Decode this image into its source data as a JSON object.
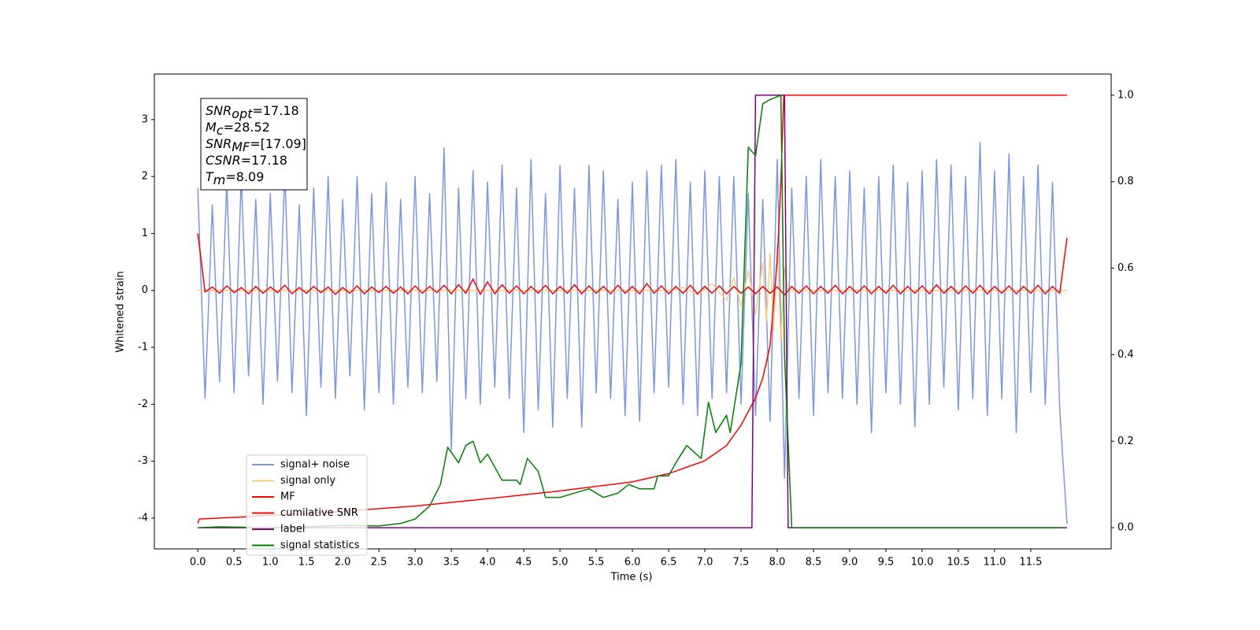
{
  "chart_data": {
    "type": "line",
    "xlabel": "Time (s)",
    "ylabel": "Whitened strain",
    "xlim": [
      -0.6,
      12.61
    ],
    "ylim": [
      -4.54,
      3.8
    ],
    "y2lim": [
      -0.049,
      1.049
    ],
    "xticks": [
      {
        "value": 0,
        "label": "0.0"
      },
      0.5,
      {
        "value": 1,
        "label": "1.0"
      },
      1.5,
      {
        "value": 2,
        "label": "2.0"
      },
      2.5,
      {
        "value": 3,
        "label": "3.0"
      },
      3.5,
      {
        "value": 4,
        "label": "4.0"
      },
      4.5,
      {
        "value": 5,
        "label": "5.0"
      },
      5.5,
      {
        "value": 6,
        "label": "6.0"
      },
      6.5,
      {
        "value": 7,
        "label": "7.0"
      },
      7.5,
      {
        "value": 8,
        "label": "8.0"
      },
      8.5,
      {
        "value": 9,
        "label": "9.0"
      },
      9.5,
      {
        "value": 10,
        "label": "10.0"
      },
      10.5,
      {
        "value": 11,
        "label": "11.0"
      },
      11.5
    ],
    "yticks": [
      -4,
      -3,
      -2,
      -1,
      0,
      1,
      2,
      3
    ],
    "y2ticks": [
      {
        "value": 0,
        "label": "0.0"
      },
      0.2,
      0.4,
      0.6,
      0.8,
      {
        "value": 1,
        "label": "1.0"
      }
    ],
    "legend": "lower left",
    "annotations": [
      {
        "main": "SNR",
        "sub": "opt",
        "text": "=17.18"
      },
      {
        "main": "M",
        "sub": "c",
        "text": "=28.52"
      },
      {
        "main": "SNR",
        "sub": "MF",
        "text": "=[17.09]"
      },
      {
        "main": "CSNR",
        "sub": "",
        "text": "=17.18"
      },
      {
        "main": "T",
        "sub": "m",
        "text": "=8.09"
      }
    ],
    "series": [
      {
        "name": "signal+ noise",
        "color": "#7b96e8",
        "x": [
          0,
          0.1,
          0.2,
          0.3,
          0.4,
          0.5,
          0.6,
          0.7,
          0.8,
          0.9,
          1,
          1.1,
          1.2,
          1.3,
          1.4,
          1.5,
          1.6,
          1.7,
          1.8,
          1.9,
          2,
          2.1,
          2.2,
          2.3,
          2.4,
          2.5,
          2.6,
          2.7,
          2.8,
          2.9,
          3,
          3.1,
          3.2,
          3.3,
          3.4,
          3.5,
          3.6,
          3.7,
          3.8,
          3.9,
          4,
          4.1,
          4.2,
          4.3,
          4.4,
          4.5,
          4.6,
          4.7,
          4.8,
          4.9,
          5,
          5.1,
          5.2,
          5.3,
          5.4,
          5.5,
          5.6,
          5.7,
          5.8,
          5.9,
          6,
          6.1,
          6.2,
          6.3,
          6.4,
          6.5,
          6.6,
          6.7,
          6.8,
          6.9,
          7,
          7.1,
          7.2,
          7.3,
          7.4,
          7.5,
          7.6,
          7.7,
          7.8,
          7.9,
          8,
          8.1,
          8.2,
          8.3,
          8.4,
          8.5,
          8.6,
          8.7,
          8.8,
          8.9,
          9,
          9.1,
          9.2,
          9.3,
          9.4,
          9.5,
          9.6,
          9.7,
          9.8,
          9.9,
          10,
          10.1,
          10.2,
          10.3,
          10.4,
          10.5,
          10.6,
          10.7,
          10.8,
          10.9,
          11,
          11.1,
          11.2,
          11.3,
          11.4,
          11.5,
          11.6,
          11.7,
          11.8,
          11.9,
          12
        ],
        "values": [
          1.8,
          -1.9,
          1.5,
          -1.6,
          1.9,
          -1.8,
          2.0,
          -1.5,
          1.6,
          -2.0,
          1.7,
          -1.6,
          2.1,
          -1.8,
          1.5,
          -2.2,
          1.8,
          -1.7,
          2.0,
          -1.9,
          1.6,
          -1.5,
          2.0,
          -2.1,
          1.7,
          -1.8,
          1.9,
          -2.0,
          1.6,
          -1.7,
          2.0,
          -1.8,
          1.7,
          -1.6,
          2.5,
          -2.8,
          1.8,
          -1.9,
          2.1,
          -2.0,
          1.9,
          -1.7,
          2.2,
          -1.9,
          1.8,
          -2.5,
          2.3,
          -2.1,
          1.7,
          -2.4,
          2.2,
          -1.9,
          1.8,
          -2.4,
          2.2,
          -1.8,
          2.1,
          -1.9,
          1.6,
          -2.2,
          1.9,
          -2.3,
          2.1,
          -1.8,
          2.2,
          -1.7,
          2.3,
          -2.0,
          1.9,
          -2.2,
          2.1,
          -1.9,
          2.0,
          -1.8,
          2.0,
          -2.0,
          1.7,
          -2.2,
          1.6,
          -2.3,
          2.3,
          -3.3,
          1.8,
          -1.9,
          2.0,
          -2.2,
          2.3,
          -1.8,
          2.0,
          -1.9,
          2.1,
          -2.0,
          1.8,
          -2.5,
          2.0,
          -1.8,
          2.2,
          -2.0,
          1.9,
          -2.4,
          2.1,
          -2.0,
          2.3,
          -1.7,
          2.2,
          -2.1,
          2.0,
          -1.9,
          2.6,
          -2.2,
          2.1,
          -1.9,
          2.4,
          -2.5,
          2.0,
          -1.8,
          2.2,
          -2.0,
          1.9,
          -2.1,
          -4.1
        ]
      },
      {
        "name": "signal only",
        "color": "#f8cf80",
        "x": [
          0,
          6.5,
          6.7,
          6.9,
          7.1,
          7.3,
          7.4,
          7.5,
          7.6,
          7.7,
          7.8,
          7.85,
          7.9,
          7.95,
          8,
          8.05,
          8.1,
          8.15,
          12
        ],
        "values": [
          0,
          0,
          0.05,
          -0.08,
          0.12,
          -0.18,
          0.22,
          -0.28,
          0.35,
          -0.42,
          0.5,
          -0.55,
          0.65,
          -0.7,
          0.8,
          -0.9,
          0.4,
          0,
          0
        ]
      },
      {
        "name": "MF",
        "color": "#ff0000",
        "x": [
          0,
          0.1,
          0.2,
          0.3,
          0.4,
          0.5,
          0.6,
          0.7,
          0.8,
          0.9,
          1,
          1.1,
          1.2,
          1.3,
          1.4,
          1.5,
          1.6,
          1.7,
          1.8,
          1.9,
          2,
          2.1,
          2.2,
          2.3,
          2.4,
          2.5,
          2.6,
          2.7,
          2.8,
          2.9,
          3,
          3.1,
          3.2,
          3.3,
          3.4,
          3.5,
          3.6,
          3.7,
          3.8,
          3.9,
          4,
          4.1,
          4.2,
          4.3,
          4.4,
          4.5,
          4.6,
          4.7,
          4.8,
          4.9,
          5,
          5.1,
          5.2,
          5.3,
          5.4,
          5.5,
          5.6,
          5.7,
          5.8,
          5.9,
          6,
          6.1,
          6.2,
          6.3,
          6.4,
          6.5,
          6.6,
          6.7,
          6.8,
          6.9,
          7,
          7.1,
          7.2,
          7.3,
          7.4,
          7.5,
          7.6,
          7.7,
          7.8,
          7.9,
          8,
          8.1,
          8.2,
          8.3,
          8.4,
          8.5,
          8.6,
          8.7,
          8.8,
          8.9,
          9,
          9.1,
          9.2,
          9.3,
          9.4,
          9.5,
          9.6,
          9.7,
          9.8,
          9.9,
          10,
          10.1,
          10.2,
          10.3,
          10.4,
          10.5,
          10.6,
          10.7,
          10.8,
          10.9,
          11,
          11.1,
          11.2,
          11.3,
          11.4,
          11.5,
          11.6,
          11.7,
          11.8,
          11.9,
          12
        ],
        "values": [
          1.0,
          -0.03,
          0.06,
          -0.05,
          0.08,
          -0.04,
          0.05,
          -0.06,
          0.07,
          -0.05,
          0.06,
          -0.04,
          0.09,
          -0.06,
          0.05,
          -0.05,
          0.07,
          -0.04,
          0.06,
          -0.07,
          0.05,
          -0.05,
          0.08,
          -0.06,
          0.06,
          -0.04,
          0.07,
          -0.05,
          0.06,
          -0.06,
          0.08,
          -0.05,
          0.07,
          -0.04,
          0.09,
          -0.06,
          0.1,
          -0.05,
          0.2,
          -0.07,
          0.15,
          -0.06,
          0.1,
          -0.05,
          0.08,
          -0.06,
          0.07,
          -0.05,
          0.09,
          -0.06,
          0.07,
          -0.05,
          0.1,
          -0.06,
          0.08,
          -0.05,
          0.07,
          -0.06,
          0.09,
          -0.05,
          0.07,
          -0.06,
          0.12,
          -0.05,
          0.08,
          -0.06,
          0.07,
          -0.05,
          0.09,
          -0.06,
          0.07,
          -0.05,
          0.08,
          -0.06,
          0.07,
          -0.05,
          0.06,
          -0.06,
          0.07,
          -0.05,
          0.06,
          -0.08,
          0.07,
          -0.05,
          0.08,
          -0.06,
          0.07,
          -0.05,
          0.09,
          -0.06,
          0.07,
          -0.05,
          0.08,
          -0.06,
          0.07,
          -0.05,
          0.09,
          -0.06,
          0.07,
          -0.05,
          0.08,
          -0.06,
          0.1,
          -0.05,
          0.07,
          -0.06,
          0.08,
          -0.05,
          0.09,
          -0.06,
          0.07,
          -0.05,
          0.08,
          -0.06,
          0.07,
          -0.05,
          0.09,
          -0.06,
          0.07,
          -0.05,
          0.92
        ]
      },
      {
        "name": "cumilative SNR",
        "color": "#ff0000",
        "axis": "y2",
        "x": [
          0,
          0.02,
          1,
          2,
          3,
          4,
          5,
          6,
          6.5,
          7,
          7.3,
          7.5,
          7.7,
          7.8,
          7.9,
          8,
          8.05,
          8.09,
          12
        ],
        "values": [
          0.01,
          0.02,
          0.028,
          0.038,
          0.05,
          0.067,
          0.085,
          0.106,
          0.125,
          0.155,
          0.19,
          0.237,
          0.3,
          0.346,
          0.42,
          0.62,
          0.8,
          1.0,
          1.0
        ]
      },
      {
        "name": "label",
        "color": "#800080",
        "axis": "y2",
        "x": [
          0,
          7.65,
          7.7,
          8.1,
          8.15,
          12
        ],
        "values": [
          0,
          0,
          1,
          1,
          0,
          0
        ]
      },
      {
        "name": "signal statistics",
        "color": "#008000",
        "axis": "y2",
        "x": [
          0,
          0.3,
          1,
          2,
          2.5,
          2.8,
          3.0,
          3.2,
          3.35,
          3.45,
          3.6,
          3.7,
          3.8,
          3.9,
          4.0,
          4.2,
          4.4,
          4.45,
          4.55,
          4.7,
          4.8,
          5.0,
          5.2,
          5.4,
          5.6,
          5.8,
          5.95,
          6.1,
          6.3,
          6.35,
          6.5,
          6.6,
          6.75,
          6.95,
          7.05,
          7.15,
          7.3,
          7.35,
          7.5,
          7.6,
          7.7,
          7.8,
          7.9,
          8.05,
          8.1,
          8.2,
          11.95
        ],
        "values": [
          0,
          0.002,
          0,
          0.005,
          0.004,
          0.01,
          0.02,
          0.05,
          0.1,
          0.186,
          0.15,
          0.19,
          0.2,
          0.15,
          0.17,
          0.11,
          0.11,
          0.1,
          0.16,
          0.13,
          0.07,
          0.07,
          0.08,
          0.09,
          0.07,
          0.08,
          0.1,
          0.09,
          0.09,
          0.12,
          0.12,
          0.15,
          0.19,
          0.16,
          0.29,
          0.22,
          0.26,
          0.22,
          0.38,
          0.88,
          0.86,
          0.98,
          0.99,
          1.0,
          0.4,
          0,
          0
        ]
      }
    ]
  }
}
